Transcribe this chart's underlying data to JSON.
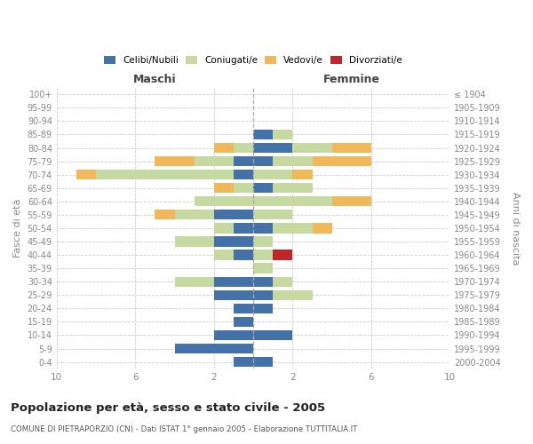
{
  "age_groups": [
    "100+",
    "95-99",
    "90-94",
    "85-89",
    "80-84",
    "75-79",
    "70-74",
    "65-69",
    "60-64",
    "55-59",
    "50-54",
    "45-49",
    "40-44",
    "35-39",
    "30-34",
    "25-29",
    "20-24",
    "15-19",
    "10-14",
    "5-9",
    "0-4"
  ],
  "birth_years": [
    "≤ 1904",
    "1905-1909",
    "1910-1914",
    "1915-1919",
    "1920-1924",
    "1925-1929",
    "1930-1934",
    "1935-1939",
    "1940-1944",
    "1945-1949",
    "1950-1954",
    "1955-1959",
    "1960-1964",
    "1965-1969",
    "1970-1974",
    "1975-1979",
    "1980-1984",
    "1985-1989",
    "1990-1994",
    "1995-1999",
    "2000-2004"
  ],
  "male_celibi": [
    0,
    0,
    0,
    0,
    0,
    1,
    1,
    0,
    0,
    2,
    1,
    2,
    1,
    0,
    2,
    2,
    1,
    1,
    2,
    4,
    1
  ],
  "male_coniugati": [
    0,
    0,
    0,
    0,
    1,
    2,
    7,
    1,
    3,
    2,
    1,
    2,
    1,
    0,
    2,
    0,
    0,
    0,
    0,
    0,
    0
  ],
  "male_vedovi": [
    0,
    0,
    0,
    0,
    1,
    2,
    1,
    1,
    0,
    1,
    0,
    0,
    0,
    0,
    0,
    0,
    0,
    0,
    0,
    0,
    0
  ],
  "male_divorziati": [
    0,
    0,
    0,
    0,
    0,
    0,
    0,
    0,
    0,
    0,
    0,
    0,
    0,
    0,
    0,
    0,
    0,
    0,
    0,
    0,
    0
  ],
  "female_nubili": [
    0,
    0,
    0,
    1,
    2,
    1,
    0,
    1,
    0,
    0,
    1,
    0,
    0,
    0,
    1,
    1,
    1,
    0,
    2,
    0,
    1
  ],
  "female_coniugate": [
    0,
    0,
    0,
    1,
    2,
    2,
    2,
    2,
    4,
    2,
    2,
    1,
    1,
    1,
    1,
    2,
    0,
    0,
    0,
    0,
    0
  ],
  "female_vedove": [
    0,
    0,
    0,
    0,
    2,
    3,
    1,
    0,
    2,
    0,
    1,
    0,
    0,
    0,
    0,
    0,
    0,
    0,
    0,
    0,
    0
  ],
  "female_divorziate": [
    0,
    0,
    0,
    0,
    0,
    0,
    0,
    0,
    0,
    0,
    0,
    0,
    1,
    0,
    0,
    0,
    0,
    0,
    0,
    0,
    0
  ],
  "color_celibi": "#4472a8",
  "color_coniugati": "#c5d9a0",
  "color_vedovi": "#f0b85a",
  "color_divorziati": "#c0252a",
  "title": "Popolazione per età, sesso e stato civile - 2005",
  "subtitle": "COMUNE DI PIETRAPORZIO (CN) - Dati ISTAT 1° gennaio 2005 - Elaborazione TUTTITALIA.IT",
  "xlabel_left": "Maschi",
  "xlabel_right": "Femmine",
  "ylabel_left": "Fasce di età",
  "ylabel_right": "Anni di nascita",
  "xlim": 10,
  "background_color": "#ffffff",
  "grid_color": "#cccccc",
  "legend_labels": [
    "Celibi/Nubili",
    "Coniugati/e",
    "Vedovi/e",
    "Divorziati/e"
  ]
}
